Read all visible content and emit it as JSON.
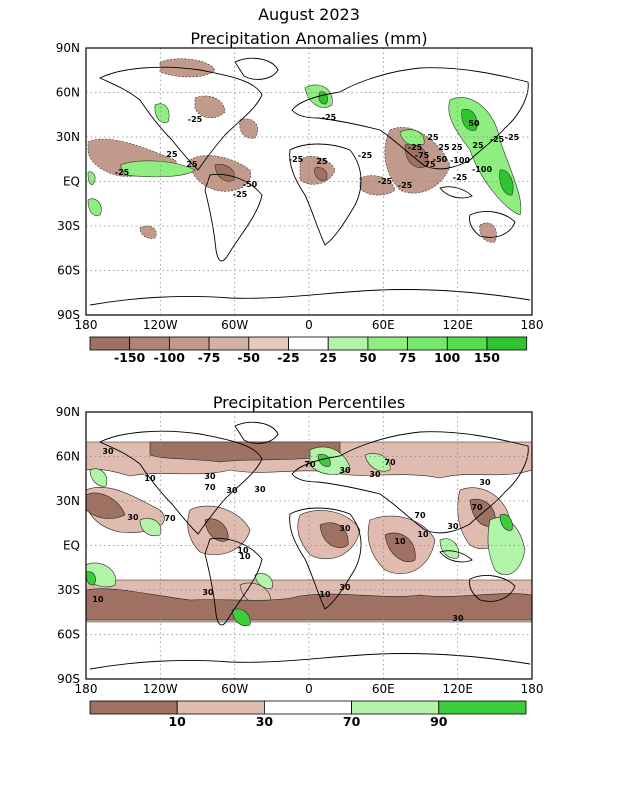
{
  "titles": {
    "main": "August 2023",
    "panel1": "Precipitation Anomalies (mm)",
    "panel2": "Precipitation Percentiles"
  },
  "axis": {
    "lat_labels": [
      "90N",
      "60N",
      "30N",
      "EQ",
      "30S",
      "60S",
      "90S"
    ],
    "lon_labels": [
      "180",
      "120W",
      "60W",
      "0",
      "60E",
      "120E",
      "180"
    ]
  },
  "anomaly_legend": {
    "labels": [
      "-150",
      "-100",
      "-75",
      "-50",
      "-25",
      "25",
      "50",
      "75",
      "100",
      "150"
    ],
    "colors": [
      "#9e7163",
      "#b08377",
      "#c29a8c",
      "#d3b1a4",
      "#e6c8bd",
      "#ffffff",
      "#b2f4a8",
      "#8eee7f",
      "#74e86a",
      "#54dd4c",
      "#30c530"
    ]
  },
  "percentile_legend": {
    "labels": [
      "10",
      "30",
      "70",
      "90"
    ],
    "colors": [
      "#9e7163",
      "#e0bcb0",
      "#ffffff",
      "#b2f4a8",
      "#3ccd3a"
    ]
  },
  "anomaly_contour_labels": [
    "-25",
    "25",
    "-25",
    "-25",
    "25",
    "-50",
    "-25",
    "-25",
    "-25",
    "25",
    "-25",
    "-75",
    "-25",
    "25",
    "25",
    "25",
    "-25",
    "-100",
    "-100",
    "-25",
    "-25",
    "25",
    "75",
    "50",
    "-50",
    "-25"
  ],
  "percentile_contour_labels": [
    "30",
    "10",
    "30",
    "70",
    "30",
    "70",
    "30",
    "10",
    "30",
    "70",
    "30",
    "10",
    "30",
    "70",
    "10",
    "30",
    "70",
    "30",
    "10",
    "30",
    "10",
    "30",
    "10",
    "30",
    "70",
    "30"
  ],
  "colors": {
    "dry": "#9e7163",
    "wet": "#3ccd3a",
    "grid": "#888888"
  }
}
